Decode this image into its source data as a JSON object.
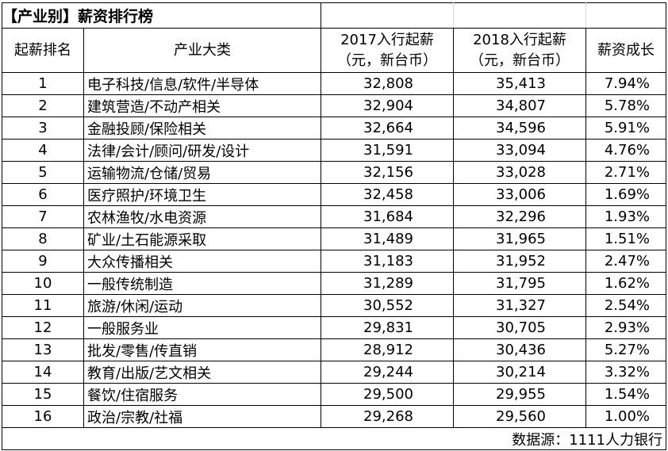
{
  "title": "【产业别】薪资排行榜",
  "headers": {
    "rank": "起薪排名",
    "industry": "产业大类",
    "y2017_line1": "2017入行起薪",
    "y2017_line2": "（元，新台币）",
    "y2018_line1": "2018入行起薪",
    "y2018_line2": "（元，新台币）",
    "growth": "薪资成长"
  },
  "rows": [
    {
      "rank": "1",
      "industry": "电子科技/信息/软件/半导体",
      "y2017": "32,808",
      "y2018": "35,413",
      "growth": "7.94%"
    },
    {
      "rank": "2",
      "industry": "建筑营造/不动产相关",
      "y2017": "32,904",
      "y2018": "34,807",
      "growth": "5.78%"
    },
    {
      "rank": "3",
      "industry": "金融投顾/保险相关",
      "y2017": "32,664",
      "y2018": "34,596",
      "growth": "5.91%"
    },
    {
      "rank": "4",
      "industry": "法律/会计/顾问/研发/设计",
      "y2017": "31,591",
      "y2018": "33,094",
      "growth": "4.76%"
    },
    {
      "rank": "5",
      "industry": "运输物流/仓储/贸易",
      "y2017": "32,156",
      "y2018": "33,028",
      "growth": "2.71%"
    },
    {
      "rank": "6",
      "industry": "医疗照护/环境卫生",
      "y2017": "32,458",
      "y2018": "33,006",
      "growth": "1.69%"
    },
    {
      "rank": "7",
      "industry": "农林渔牧/水电资源",
      "y2017": "31,684",
      "y2018": "32,296",
      "growth": "1.93%"
    },
    {
      "rank": "8",
      "industry": "矿业/土石能源采取",
      "y2017": "31,489",
      "y2018": "31,965",
      "growth": "1.51%"
    },
    {
      "rank": "9",
      "industry": "大众传播相关",
      "y2017": "31,183",
      "y2018": "31,952",
      "growth": "2.47%"
    },
    {
      "rank": "10",
      "industry": "一般传统制造",
      "y2017": "31,289",
      "y2018": "31,795",
      "growth": "1.62%"
    },
    {
      "rank": "11",
      "industry": "旅游/休闲/运动",
      "y2017": "30,552",
      "y2018": "31,327",
      "growth": "2.54%"
    },
    {
      "rank": "12",
      "industry": "一般服务业",
      "y2017": "29,831",
      "y2018": "30,705",
      "growth": "2.93%"
    },
    {
      "rank": "13",
      "industry": "批发/零售/传直销",
      "y2017": "28,912",
      "y2018": "30,436",
      "growth": "5.27%"
    },
    {
      "rank": "14",
      "industry": "教育/出版/艺文相关",
      "y2017": "29,244",
      "y2018": "30,214",
      "growth": "3.32%"
    },
    {
      "rank": "15",
      "industry": "餐饮/住宿服务",
      "y2017": "29,500",
      "y2018": "29,955",
      "growth": "1.54%"
    },
    {
      "rank": "16",
      "industry": "政治/宗教/社福",
      "y2017": "29,268",
      "y2018": "29,560",
      "growth": "1.00%"
    }
  ],
  "footer": {
    "source": "数据源：1111人力银行"
  }
}
